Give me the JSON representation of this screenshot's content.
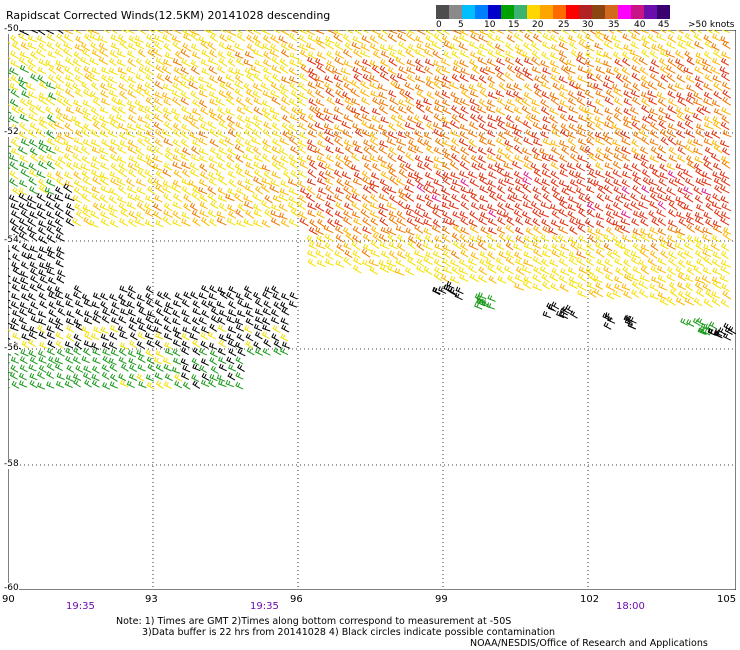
{
  "title": "Rapidscat Corrected Winds(12.5KM) 20141028 descending",
  "legend": {
    "colors": [
      "#4d4d4d",
      "#8a8a8a",
      "#00bfff",
      "#0080ff",
      "#0000cd",
      "#00a000",
      "#3cb371",
      "#ffd700",
      "#ffa500",
      "#ff6a00",
      "#ff0000",
      "#b22222",
      "#8b4513",
      "#d2691e",
      "#ff00ff",
      "#c71585",
      "#6a0dad",
      "#3a0070"
    ],
    "labels": [
      "0",
      "5",
      "10",
      "15",
      "20",
      "25",
      "30",
      "35",
      "40",
      "45",
      ">50 knots"
    ]
  },
  "axes": {
    "x_labels": [
      "90",
      "93",
      "96",
      "99",
      "102",
      "105"
    ],
    "y_labels": [
      "-50",
      "-52",
      "-54",
      "-56",
      "-58",
      "-60"
    ]
  },
  "times": [
    "19:35",
    "19:35",
    "18:00"
  ],
  "notes": [
    "Note: 1) Times are GMT 2)Times along bottom correspond to measurement at -50S",
    "3)Data buffer is 22 hrs from 20141028 4) Black circles indicate possible contamination",
    "NOAA/NESDIS/Office of Research and Applications"
  ],
  "colors": {
    "black": "#000000",
    "green": "#1a9a1a",
    "yellow": "#f5e000",
    "gold": "#ffb800",
    "orange": "#f07800",
    "red": "#e03010",
    "magenta": "#e0208a"
  }
}
